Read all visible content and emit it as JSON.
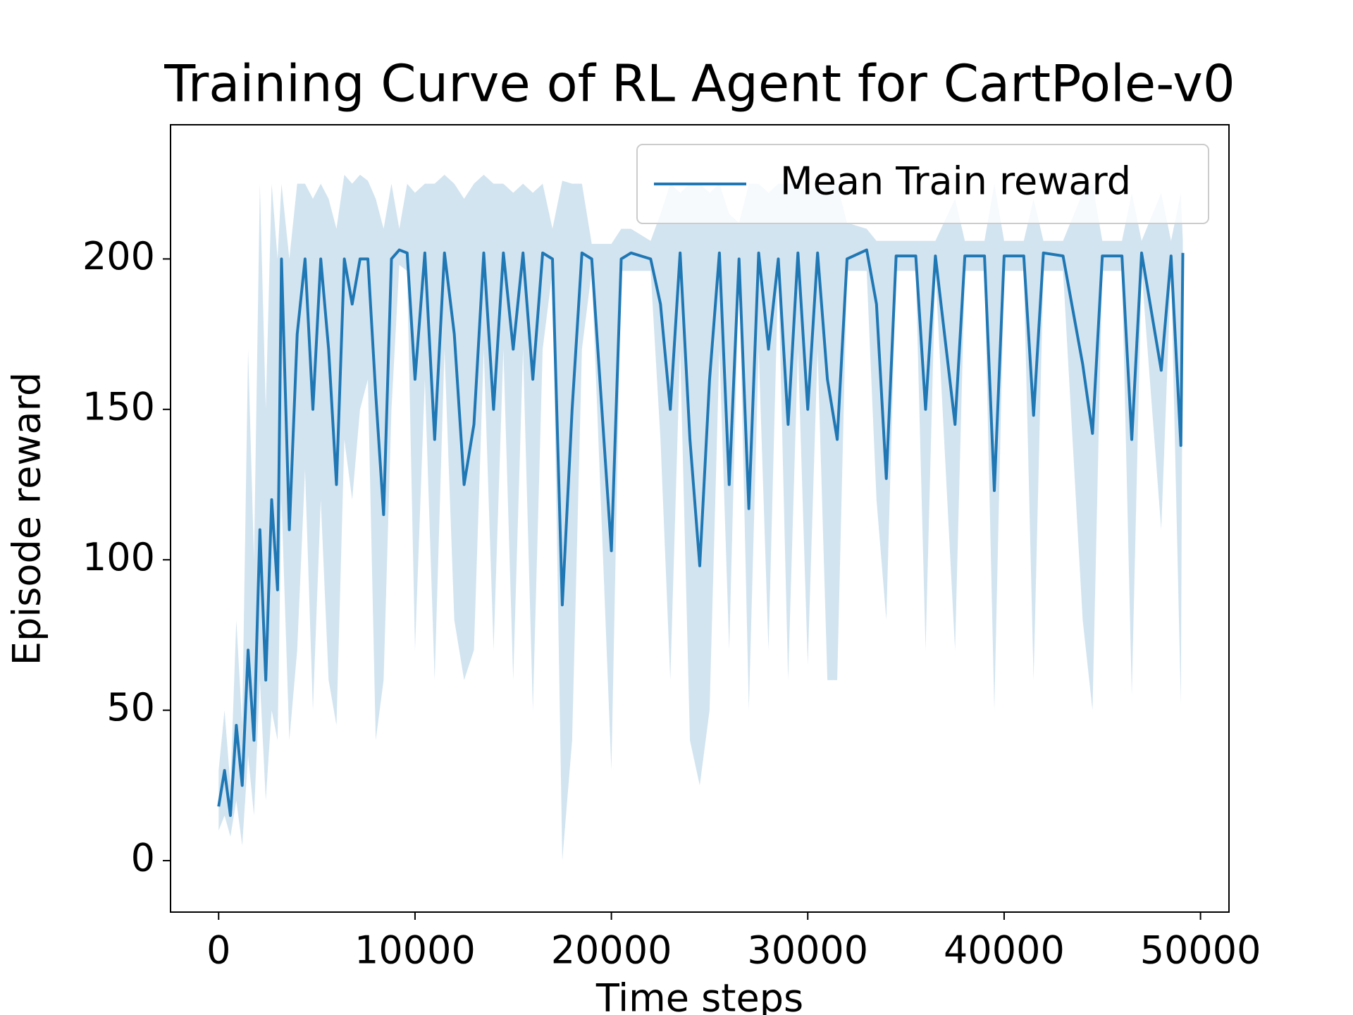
{
  "chart_data": {
    "type": "line",
    "title": "Training Curve of RL Agent for CartPole-v0",
    "x_label": "Time steps",
    "y_label": "Episode reward",
    "x": [
      0,
      300,
      600,
      900,
      1200,
      1500,
      1800,
      2100,
      2400,
      2700,
      3000,
      3200,
      3600,
      4000,
      4400,
      4800,
      5200,
      5600,
      6000,
      6400,
      6800,
      7200,
      7600,
      8000,
      8400,
      8800,
      9200,
      9600,
      10000,
      10500,
      11000,
      11500,
      12000,
      12500,
      13000,
      13500,
      14000,
      14500,
      15000,
      15500,
      16000,
      16500,
      17000,
      17500,
      18000,
      18500,
      19000,
      20000,
      20500,
      21000,
      22000,
      22500,
      23000,
      23500,
      24000,
      24500,
      25000,
      25500,
      26000,
      26500,
      27000,
      27500,
      28000,
      28500,
      29000,
      29500,
      30000,
      30500,
      31000,
      31500,
      32000,
      33000,
      33500,
      34000,
      34500,
      35500,
      36000,
      36500,
      37500,
      38000,
      39000,
      39500,
      40000,
      41000,
      41500,
      42000,
      43000,
      44000,
      44500,
      45000,
      46000,
      46500,
      47000,
      48000,
      48500,
      49000,
      49100
    ],
    "series": [
      {
        "name": "Mean Train reward",
        "color": "#1f77b4",
        "values": [
          18,
          30,
          15,
          45,
          25,
          70,
          40,
          110,
          60,
          120,
          90,
          200,
          110,
          175,
          200,
          150,
          200,
          170,
          125,
          200,
          185,
          200,
          200,
          155,
          115,
          200,
          203,
          202,
          160,
          202,
          140,
          202,
          175,
          125,
          145,
          202,
          150,
          202,
          170,
          202,
          160,
          202,
          200,
          85,
          150,
          202,
          200,
          103,
          200,
          202,
          200,
          185,
          150,
          202,
          140,
          98,
          160,
          202,
          125,
          200,
          117,
          202,
          170,
          200,
          145,
          202,
          150,
          202,
          160,
          140,
          200,
          203,
          185,
          127,
          201,
          201,
          150,
          201,
          145,
          201,
          201,
          123,
          201,
          201,
          148,
          202,
          201,
          165,
          142,
          201,
          201,
          140,
          202,
          163,
          201,
          138,
          202
        ],
        "lower": [
          10,
          15,
          8,
          20,
          5,
          35,
          15,
          60,
          20,
          50,
          40,
          120,
          40,
          70,
          130,
          50,
          120,
          60,
          45,
          140,
          120,
          150,
          160,
          40,
          60,
          150,
          198,
          196,
          70,
          160,
          60,
          170,
          80,
          60,
          70,
          170,
          70,
          170,
          60,
          170,
          50,
          170,
          196,
          0,
          40,
          170,
          196,
          30,
          196,
          196,
          196,
          140,
          60,
          170,
          40,
          25,
          50,
          170,
          70,
          196,
          50,
          170,
          70,
          196,
          60,
          170,
          65,
          170,
          60,
          60,
          196,
          196,
          120,
          80,
          196,
          196,
          70,
          196,
          70,
          196,
          196,
          50,
          196,
          196,
          60,
          196,
          196,
          80,
          50,
          196,
          196,
          55,
          196,
          110,
          196,
          52,
          196
        ],
        "upper": [
          30,
          50,
          25,
          80,
          45,
          170,
          100,
          225,
          150,
          225,
          200,
          225,
          200,
          225,
          225,
          220,
          225,
          220,
          210,
          228,
          225,
          228,
          226,
          220,
          210,
          225,
          210,
          225,
          222,
          225,
          225,
          228,
          225,
          220,
          225,
          228,
          225,
          225,
          222,
          225,
          222,
          225,
          210,
          226,
          225,
          225,
          205,
          205,
          210,
          210,
          206,
          215,
          225,
          222,
          225,
          225,
          222,
          225,
          215,
          212,
          225,
          225,
          222,
          225,
          225,
          225,
          222,
          225,
          225,
          225,
          212,
          210,
          206,
          206,
          206,
          206,
          206,
          206,
          220,
          206,
          206,
          225,
          206,
          206,
          220,
          206,
          206,
          222,
          225,
          206,
          206,
          222,
          206,
          222,
          206,
          222,
          206
        ]
      }
    ],
    "xlim": [
      -2450,
      51450
    ],
    "ylim": [
      -17.1,
      244.6
    ],
    "xticks": [
      0,
      10000,
      20000,
      30000,
      40000,
      50000
    ],
    "yticks": [
      0,
      50,
      100,
      150,
      200
    ],
    "legend": "upper right"
  }
}
